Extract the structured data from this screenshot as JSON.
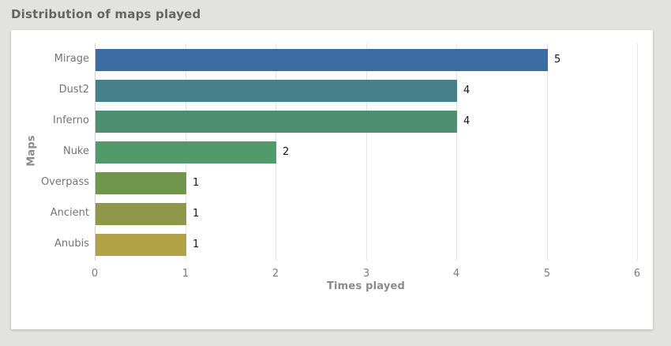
{
  "header": {
    "title": "Distribution of maps played"
  },
  "chart_data": {
    "type": "bar",
    "orientation": "horizontal",
    "title": "Distribution of maps played",
    "categories": [
      "Mirage",
      "Dust2",
      "Inferno",
      "Nuke",
      "Overpass",
      "Ancient",
      "Anubis"
    ],
    "values": [
      5,
      4,
      4,
      2,
      1,
      1,
      1
    ],
    "value_labels": [
      "5",
      "4",
      "4",
      "2",
      "1",
      "1",
      "1"
    ],
    "bar_colors": [
      "#3d6ca3",
      "#45808b",
      "#4e8f71",
      "#509a6c",
      "#70954d",
      "#90964a",
      "#b1a147"
    ],
    "xlabel": "Times played",
    "ylabel": "Maps",
    "xticks": [
      0,
      1,
      2,
      3,
      4,
      5,
      6
    ],
    "xlim": [
      0,
      6
    ],
    "grid": true,
    "legend": false,
    "colors": {
      "page_background": "#e2e3e1",
      "card_background": "#ffffff",
      "gridline": "#e5e5e5",
      "axis_line": "#d2d2d2",
      "tick_label": "#7d7d7d",
      "axis_title": "#8a8a8a",
      "value_label": "#161616",
      "page_title": "#646464"
    }
  }
}
